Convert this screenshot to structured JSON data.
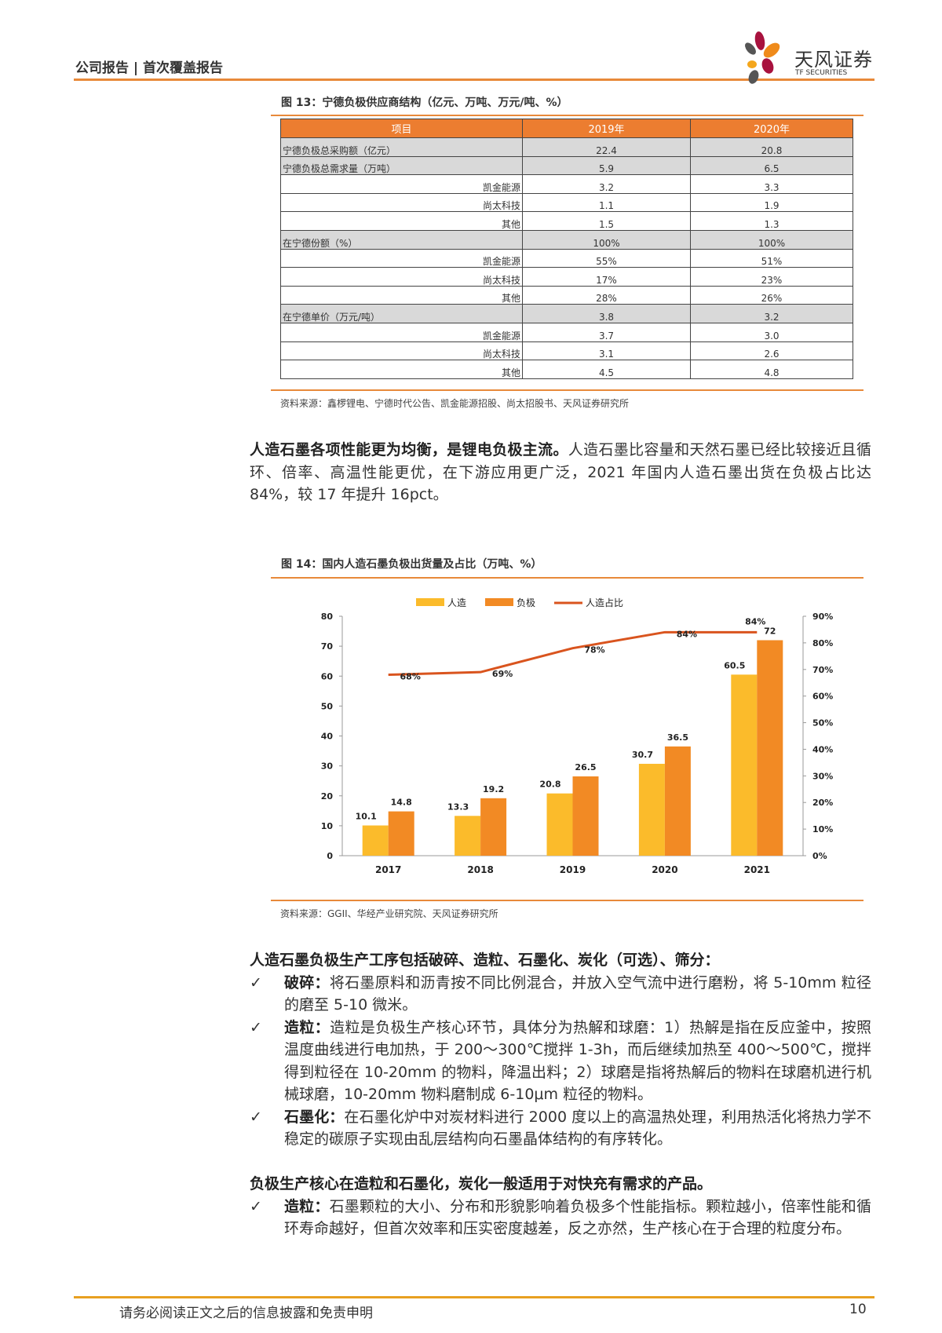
{
  "header": {
    "left_text": "公司报告 | 首次覆盖报告",
    "logo_cn": "天风证券",
    "logo_en": "TF SECURITIES"
  },
  "table": {
    "title": "图 13：宁德负极供应商结构（亿元、万吨、万元/吨、%）",
    "columns": [
      "项目",
      "2019年",
      "2020年"
    ],
    "rows": [
      {
        "label": "宁德负极总采购额（亿元）",
        "v2019": "22.4",
        "v2020": "20.8",
        "type": "main"
      },
      {
        "label": "宁德负极总需求量（万吨）",
        "v2019": "5.9",
        "v2020": "6.5",
        "type": "main"
      },
      {
        "label": "凯金能源",
        "v2019": "3.2",
        "v2020": "3.3",
        "type": "sub"
      },
      {
        "label": "尚太科技",
        "v2019": "1.1",
        "v2020": "1.9",
        "type": "sub"
      },
      {
        "label": "其他",
        "v2019": "1.5",
        "v2020": "1.3",
        "type": "sub"
      },
      {
        "label": "在宁德份额（%）",
        "v2019": "100%",
        "v2020": "100%",
        "type": "main"
      },
      {
        "label": "凯金能源",
        "v2019": "55%",
        "v2020": "51%",
        "type": "sub"
      },
      {
        "label": "尚太科技",
        "v2019": "17%",
        "v2020": "23%",
        "type": "sub"
      },
      {
        "label": "其他",
        "v2019": "28%",
        "v2020": "26%",
        "type": "sub"
      },
      {
        "label": "在宁德单价（万元/吨）",
        "v2019": "3.8",
        "v2020": "3.2",
        "type": "main"
      },
      {
        "label": "凯金能源",
        "v2019": "3.7",
        "v2020": "3.0",
        "type": "sub"
      },
      {
        "label": "尚太科技",
        "v2019": "3.1",
        "v2020": "2.6",
        "type": "sub"
      },
      {
        "label": "其他",
        "v2019": "4.5",
        "v2020": "4.8",
        "type": "sub"
      }
    ],
    "source": "资料来源：鑫椤锂电、宁德时代公告、凯金能源招股、尚太招股书、天风证券研究所"
  },
  "para1": {
    "bold": "人造石墨各项性能更为均衡，是锂电负极主流。",
    "text": "人造石墨比容量和天然石墨已经比较接近且循环、倍率、高温性能更优，在下游应用更广泛，2021 年国内人造石墨出货在负极占比达 84%，较 17 年提升 16pct。"
  },
  "chart_data": {
    "type": "bar",
    "title": "图 14：国内人造石墨负极出货量及占比（万吨、%）",
    "categories": [
      "2017",
      "2018",
      "2019",
      "2020",
      "2021"
    ],
    "series": [
      {
        "name": "人造",
        "type": "bar",
        "values": [
          10.1,
          13.3,
          20.8,
          30.7,
          60.5
        ],
        "color": "#fbbb2b"
      },
      {
        "name": "负极",
        "type": "bar",
        "values": [
          14.8,
          19.2,
          26.5,
          36.5,
          72
        ],
        "color": "#f28a24"
      },
      {
        "name": "人造占比",
        "type": "line",
        "axis": "right",
        "values": [
          68,
          69,
          78,
          84,
          84
        ],
        "labels": [
          "68%",
          "69%",
          "78%",
          "84%",
          "84%"
        ],
        "color": "#d9541e"
      }
    ],
    "ylim": [
      0,
      80
    ],
    "yticks": [
      "0",
      "10",
      "20",
      "30",
      "40",
      "50",
      "60",
      "70",
      "80"
    ],
    "y2lim": [
      0,
      90
    ],
    "y2ticks": [
      "0%",
      "10%",
      "20%",
      "30%",
      "40%",
      "50%",
      "60%",
      "70%",
      "80%",
      "90%"
    ],
    "legend": "top-center",
    "source": "资料来源：GGII、华经产业研究院、天风证券研究所"
  },
  "section1": {
    "heading": "人造石墨负极生产工序包括破碎、造粒、石墨化、炭化（可选）、筛分：",
    "bullets": [
      {
        "bold": "破碎：",
        "text": "将石墨原料和沥青按不同比例混合，并放入空气流中进行磨粉，将 5-10mm 粒径的磨至 5-10 微米。"
      },
      {
        "bold": "造粒：",
        "text": "造粒是负极生产核心环节，具体分为热解和球磨：1）热解是指在反应釜中，按照温度曲线进行电加热，于 200～300℃搅拌 1-3h，而后继续加热至 400～500℃，搅拌得到粒径在 10-20mm 的物料，降温出料；2）球磨是指将热解后的物料在球磨机进行机械球磨，10-20mm 物料磨制成 6-10μm 粒径的物料。"
      },
      {
        "bold": "石墨化：",
        "text": "在石墨化炉中对炭材料进行 2000 度以上的高温热处理，利用热活化将热力学不稳定的碳原子实现由乱层结构向石墨晶体结构的有序转化。"
      }
    ]
  },
  "section2": {
    "heading": "负极生产核心在造粒和石墨化，炭化一般适用于对快充有需求的产品。",
    "bullets": [
      {
        "bold": "造粒：",
        "text": "石墨颗粒的大小、分布和形貌影响着负极多个性能指标。颗粒越小，倍率性能和循环寿命越好，但首次效率和压实密度越差，反之亦然，生产核心在于合理的粒度分布。"
      }
    ]
  },
  "check_mark": "✓",
  "footer": {
    "text": "请务必阅读正文之后的信息披露和免责申明",
    "page": "10"
  }
}
